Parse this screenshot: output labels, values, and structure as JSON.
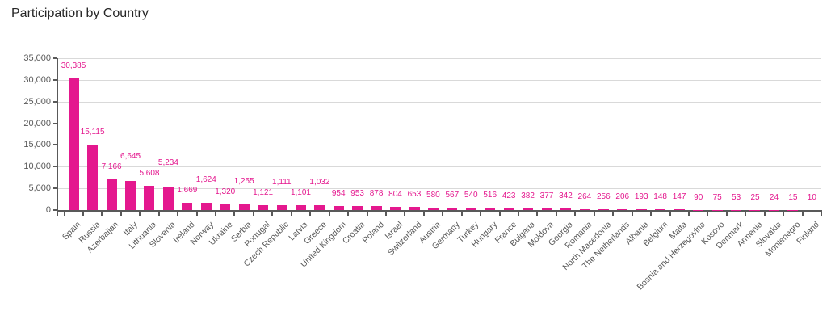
{
  "chart_data": {
    "type": "bar",
    "title": "Participation by Country",
    "categories": [
      "Spain",
      "Russia",
      "Azerbaijan",
      "Italy",
      "Lithuania",
      "Slovenia",
      "Ireland",
      "Norway",
      "Ukraine",
      "Serbia",
      "Portugal",
      "Czech Republic",
      "Latvia",
      "Greece",
      "United Kingdom",
      "Croatia",
      "Poland",
      "Israel",
      "Switzerland",
      "Austria",
      "Germany",
      "Turkey",
      "Hungary",
      "France",
      "Bulgaria",
      "Moldova",
      "Georgia",
      "Romania",
      "North Macedonia",
      "The Netherlands",
      "Albania",
      "Belgium",
      "Malta",
      "Bosnia and Herzegovina",
      "Kosovo",
      "Denmark",
      "Armenia",
      "Slovakia",
      "Montenegro",
      "Finland"
    ],
    "values": [
      30385,
      15115,
      7166,
      6645,
      5608,
      5234,
      1669,
      1624,
      1320,
      1255,
      1121,
      1111,
      1101,
      1032,
      954,
      953,
      878,
      804,
      653,
      580,
      567,
      540,
      516,
      423,
      382,
      377,
      342,
      264,
      256,
      206,
      193,
      148,
      147,
      90,
      75,
      53,
      25,
      24,
      15,
      10
    ],
    "xlabel": "",
    "ylabel": "",
    "ylim": [
      0,
      35000
    ],
    "ytick_step": 5000,
    "ytick_labels": [
      "0",
      "5,000",
      "10,000",
      "15,000",
      "20,000",
      "25,000",
      "30,000",
      "35,000"
    ],
    "grid": "horizontal",
    "legend": "none",
    "data_labels": "on",
    "bar_color": "#E4188E",
    "value_label_color": "#E4188E",
    "axis_color": "#595959",
    "gridline_color": "#D9D9D9",
    "tick_label_color": "#595959",
    "title_color": "#262626"
  }
}
